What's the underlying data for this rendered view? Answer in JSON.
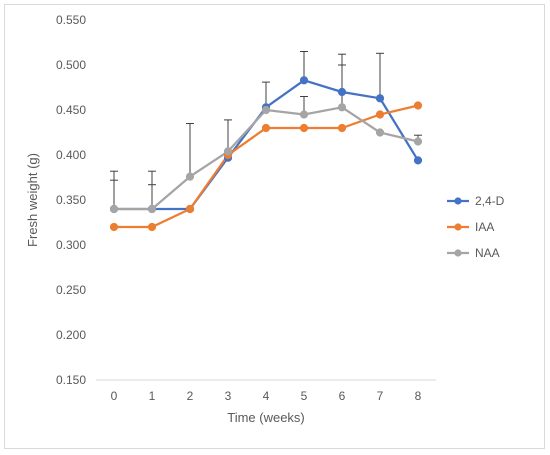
{
  "chart_data": {
    "type": "line",
    "xlabel": "Time (weeks)",
    "ylabel": "Fresh weight (g)",
    "x": [
      0,
      1,
      2,
      3,
      4,
      5,
      6,
      7,
      8
    ],
    "ylim": [
      0.15,
      0.55
    ],
    "ytick_labels": [
      "0.150",
      "0.200",
      "0.250",
      "0.300",
      "0.350",
      "0.400",
      "0.450",
      "0.500",
      "0.550"
    ],
    "grid": false,
    "legend_position": "right",
    "series": [
      {
        "name": "2,4-D",
        "color": "#4472c4",
        "values": [
          0.34,
          0.34,
          0.34,
          0.397,
          0.453,
          0.483,
          0.47,
          0.463,
          0.394
        ],
        "error": [
          0.042,
          0.042,
          0.0,
          0.0,
          0.028,
          0.032,
          0.042,
          0.05,
          0.0
        ]
      },
      {
        "name": "IAA",
        "color": "#ed7d31",
        "values": [
          0.32,
          0.32,
          0.34,
          0.4,
          0.43,
          0.43,
          0.43,
          0.445,
          0.455
        ],
        "error": [
          0.0,
          0.0,
          0.0,
          0.0,
          0.0,
          0.0,
          0.0,
          0.0,
          0.0
        ]
      },
      {
        "name": "NAA",
        "color": "#a5a5a5",
        "values": [
          0.34,
          0.34,
          0.376,
          0.404,
          0.45,
          0.445,
          0.453,
          0.425,
          0.415
        ],
        "error": [
          0.032,
          0.027,
          0.059,
          0.035,
          0.0,
          0.02,
          0.047,
          0.0,
          0.007
        ]
      }
    ]
  }
}
